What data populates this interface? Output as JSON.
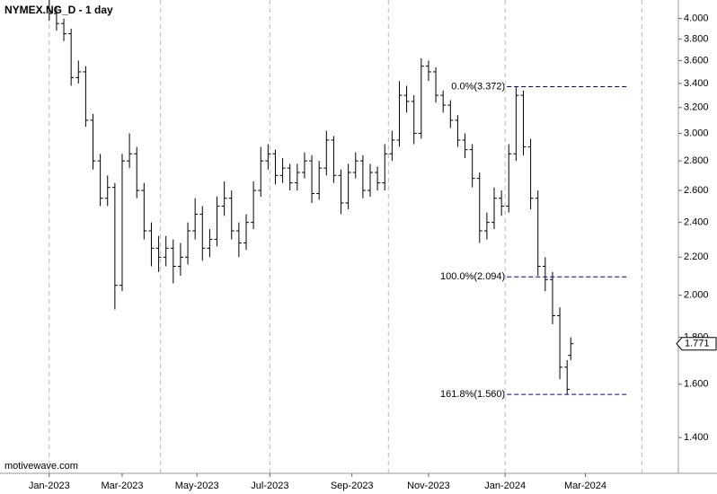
{
  "chart_data": {
    "type": "ohlc",
    "title": "NYMEX.NG_D - 1 day",
    "watermark": "motivewave.com",
    "color": "#000000",
    "log_y": true,
    "x": [
      0,
      4,
      8,
      12,
      16,
      20,
      24,
      28,
      32,
      36,
      40,
      44,
      48,
      52,
      56,
      60,
      64,
      68,
      72,
      76,
      80,
      84,
      88,
      92,
      96,
      100,
      104,
      108,
      112,
      116,
      120,
      124,
      128,
      132,
      136,
      140,
      144,
      148,
      152,
      156,
      160,
      164,
      168,
      172,
      176,
      180,
      184,
      188,
      192,
      196,
      200,
      204,
      208,
      212,
      216,
      220,
      224,
      228,
      232,
      236,
      240,
      244,
      248,
      252,
      256,
      260,
      264,
      268,
      272,
      276,
      280,
      284,
      286
    ],
    "open": [
      4.1,
      4.05,
      3.95,
      3.85,
      3.45,
      3.5,
      3.1,
      2.8,
      2.55,
      2.62,
      2.05,
      2.8,
      2.85,
      2.6,
      2.35,
      2.25,
      2.2,
      2.25,
      2.15,
      2.2,
      2.35,
      2.45,
      2.25,
      2.3,
      2.5,
      2.55,
      2.35,
      2.28,
      2.4,
      2.6,
      2.8,
      2.85,
      2.7,
      2.75,
      2.65,
      2.72,
      2.8,
      2.58,
      2.75,
      2.95,
      2.7,
      2.52,
      2.72,
      2.8,
      2.6,
      2.72,
      2.65,
      2.85,
      2.95,
      3.3,
      3.25,
      3.0,
      3.55,
      3.5,
      3.3,
      3.22,
      3.1,
      2.95,
      2.88,
      2.68,
      2.35,
      2.4,
      2.55,
      2.5,
      2.85,
      3.3,
      2.9,
      2.55,
      2.15,
      2.08,
      1.9,
      1.67,
      1.72
    ],
    "high": [
      4.19,
      4.12,
      4.0,
      3.9,
      3.6,
      3.55,
      3.15,
      2.85,
      2.7,
      2.65,
      2.85,
      3.0,
      2.9,
      2.65,
      2.4,
      2.32,
      2.32,
      2.3,
      2.28,
      2.4,
      2.55,
      2.5,
      2.36,
      2.56,
      2.66,
      2.6,
      2.4,
      2.45,
      2.66,
      2.9,
      2.92,
      2.88,
      2.82,
      2.78,
      2.78,
      2.86,
      2.84,
      2.8,
      3.02,
      2.98,
      2.74,
      2.78,
      2.86,
      2.84,
      2.78,
      2.76,
      2.92,
      3.02,
      3.42,
      3.38,
      3.3,
      3.62,
      3.6,
      3.54,
      3.34,
      3.26,
      3.14,
      3.0,
      2.92,
      2.72,
      2.46,
      2.62,
      2.6,
      2.92,
      3.372,
      3.34,
      2.96,
      2.6,
      2.2,
      2.12,
      1.94,
      1.7,
      1.8
    ],
    "low": [
      3.98,
      3.88,
      3.78,
      3.38,
      3.4,
      3.05,
      2.74,
      2.5,
      2.5,
      1.93,
      2.02,
      2.75,
      2.55,
      2.3,
      2.15,
      2.12,
      2.15,
      2.06,
      2.1,
      2.16,
      2.3,
      2.18,
      2.2,
      2.26,
      2.44,
      2.3,
      2.2,
      2.24,
      2.36,
      2.56,
      2.74,
      2.64,
      2.65,
      2.6,
      2.6,
      2.68,
      2.52,
      2.54,
      2.7,
      2.65,
      2.45,
      2.48,
      2.68,
      2.55,
      2.56,
      2.6,
      2.6,
      2.8,
      2.9,
      3.16,
      2.92,
      2.96,
      3.42,
      3.24,
      3.16,
      3.04,
      2.9,
      2.82,
      2.62,
      2.28,
      2.3,
      2.36,
      2.44,
      2.46,
      2.8,
      2.84,
      2.48,
      2.1,
      2.02,
      1.86,
      1.62,
      1.56,
      1.7
    ],
    "close": [
      4.05,
      3.95,
      3.85,
      3.45,
      3.5,
      3.1,
      2.8,
      2.55,
      2.62,
      2.05,
      2.8,
      2.85,
      2.6,
      2.35,
      2.25,
      2.2,
      2.25,
      2.15,
      2.2,
      2.35,
      2.45,
      2.25,
      2.3,
      2.5,
      2.55,
      2.35,
      2.28,
      2.4,
      2.6,
      2.8,
      2.85,
      2.7,
      2.75,
      2.65,
      2.72,
      2.8,
      2.58,
      2.75,
      2.95,
      2.7,
      2.52,
      2.72,
      2.8,
      2.6,
      2.72,
      2.65,
      2.85,
      2.95,
      3.3,
      3.25,
      3.0,
      3.55,
      3.5,
      3.3,
      3.22,
      3.1,
      2.95,
      2.88,
      2.68,
      2.35,
      2.4,
      2.55,
      2.5,
      2.85,
      3.3,
      2.9,
      2.55,
      2.15,
      2.08,
      1.9,
      1.67,
      1.58,
      1.771
    ],
    "xlim": [
      -27,
      345
    ],
    "xticks": [
      {
        "value": 0,
        "label": "Jan-2023"
      },
      {
        "value": 40,
        "label": "Mar-2023"
      },
      {
        "value": 81,
        "label": "May-2023"
      },
      {
        "value": 121,
        "label": "Jul-2023"
      },
      {
        "value": 166,
        "label": "Sep-2023"
      },
      {
        "value": 208,
        "label": "Nov-2023"
      },
      {
        "value": 250,
        "label": "Jan-2024"
      },
      {
        "value": 294,
        "label": "Mar-2024"
      }
    ],
    "xgrid": [
      0,
      61,
      121,
      186,
      250,
      325
    ],
    "ylim": [
      1.28,
      4.19
    ],
    "yticks": [
      {
        "value": 1.4,
        "label": "1.400"
      },
      {
        "value": 1.6,
        "label": "1.600"
      },
      {
        "value": 1.8,
        "label": "1.800"
      },
      {
        "value": 2.0,
        "label": "2.000"
      },
      {
        "value": 2.2,
        "label": "2.200"
      },
      {
        "value": 2.4,
        "label": "2.400"
      },
      {
        "value": 2.6,
        "label": "2.600"
      },
      {
        "value": 2.8,
        "label": "2.800"
      },
      {
        "value": 3.0,
        "label": "3.000"
      },
      {
        "value": 3.2,
        "label": "3.200"
      },
      {
        "value": 3.4,
        "label": "3.400"
      },
      {
        "value": 3.6,
        "label": "3.600"
      },
      {
        "value": 3.8,
        "label": "3.800"
      },
      {
        "value": 4.0,
        "label": "4.000"
      }
    ],
    "last_price": 1.771,
    "fib_x": [
      251,
      317
    ],
    "fib_color": "#000080",
    "fib_levels": [
      {
        "value": 3.372,
        "label": "0.0%(3.372)"
      },
      {
        "value": 2.094,
        "label": "100.0%(2.094)"
      },
      {
        "value": 1.56,
        "label": "161.8%(1.560)"
      }
    ]
  }
}
